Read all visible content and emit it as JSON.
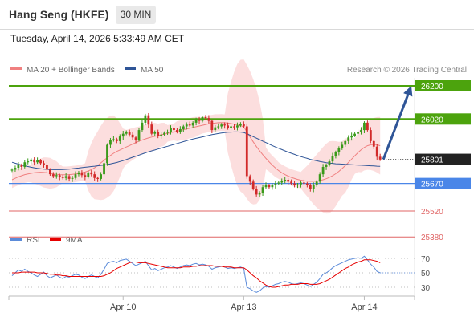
{
  "header": {
    "title": "Hang Seng (HKFE)",
    "timeframe": "30 MIN",
    "timestamp": "Tuesday, April 14, 2026 5:33:49 AM CET"
  },
  "legend": {
    "ma20_label": "MA 20 + Bollinger Bands",
    "ma20_color": "#f08080",
    "ma50_label": "MA 50",
    "ma50_color": "#2f5597",
    "credit": "Research © 2026 Trading Central"
  },
  "rsi_legend": {
    "rsi_label": "RSI",
    "rsi_color": "#5b8bd9",
    "ma9_label": "9MA",
    "ma9_color": "#e60000"
  },
  "chart_data": [
    {
      "type": "candlestick",
      "x_ticks": [
        "Apr 10",
        "Apr 13",
        "Apr 14"
      ],
      "ylim": [
        25330,
        26280
      ],
      "last_price": {
        "value": 25801,
        "label": "25801",
        "color": "#222222"
      },
      "levels": [
        {
          "value": 26200,
          "label": "26200",
          "kind": "resistance",
          "color": "#4ca30d"
        },
        {
          "value": 26020,
          "label": "26020",
          "kind": "resistance",
          "color": "#4ca30d"
        },
        {
          "value": 25670,
          "label": "25670",
          "kind": "pivot",
          "color": "#4a86e8"
        },
        {
          "value": 25520,
          "label": "25520",
          "kind": "support",
          "color": "#e06666"
        },
        {
          "value": 25380,
          "label": "25380",
          "kind": "support",
          "color": "#e06666"
        }
      ],
      "arrow": {
        "from": 25801,
        "to": 26200,
        "color": "#2f5597"
      },
      "close": [
        25745,
        25755,
        25770,
        25760,
        25785,
        25790,
        25800,
        25785,
        25795,
        25780,
        25770,
        25745,
        25720,
        25710,
        25715,
        25705,
        25700,
        25710,
        25695,
        25700,
        25720,
        25730,
        25715,
        25705,
        25730,
        25720,
        25700,
        25695,
        25720,
        25780,
        25880,
        25905,
        25910,
        25900,
        25925,
        25940,
        25950,
        25935,
        25920,
        25905,
        25960,
        26000,
        26040,
        25990,
        25940,
        25950,
        25930,
        25935,
        25945,
        25950,
        25970,
        25960,
        25950,
        25965,
        25980,
        25990,
        25985,
        26000,
        26015,
        26010,
        26030,
        26025,
        26010,
        25960,
        25975,
        25980,
        25990,
        25985,
        25970,
        25980,
        25975,
        25985,
        25995,
        25980,
        25710,
        25680,
        25640,
        25610,
        25620,
        25650,
        25660,
        25650,
        25660,
        25670,
        25675,
        25685,
        25690,
        25680,
        25670,
        25660,
        25665,
        25675,
        25670,
        25660,
        25640,
        25660,
        25680,
        25720,
        25760,
        25770,
        25790,
        25820,
        25840,
        25860,
        25880,
        25900,
        25920,
        25930,
        25940,
        25950,
        25960,
        26000,
        25960,
        25900,
        25870,
        25815,
        25800
      ],
      "ma20": [
        25690,
        25698,
        25706,
        25712,
        25718,
        25722,
        25725,
        25728,
        25730,
        25731,
        25730,
        25728,
        25725,
        25722,
        25720,
        25718,
        25717,
        25717,
        25718,
        25720,
        25722,
        25725,
        25728,
        25732,
        25738,
        25745,
        25755,
        25768,
        25782,
        25796,
        25810,
        25822,
        25834,
        25844,
        25852,
        25860,
        25868,
        25876,
        25884,
        25892,
        25900,
        25906,
        25912,
        25917,
        25922,
        25926,
        25930,
        25934,
        25938,
        25942,
        25946,
        25950,
        25954,
        25958,
        25962,
        25966,
        25970,
        25974,
        25978,
        25982,
        25986,
        25990,
        25994,
        25996,
        25998,
        26000,
        26001,
        26000,
        25998,
        25995,
        25992,
        25988,
        25984,
        25978,
        25950,
        25922,
        25896,
        25870,
        25848,
        25826,
        25806,
        25788,
        25770,
        25754,
        25740,
        25728,
        25718,
        25710,
        25703,
        25697,
        25692,
        25688,
        25685,
        25683,
        25682,
        25682,
        25683,
        25686,
        25690,
        25696,
        25703,
        25712,
        25723,
        25736,
        25751,
        25767,
        25784,
        25802,
        25820,
        25838,
        25853,
        25866,
        25875,
        25880,
        25882,
        25880,
        25875
      ],
      "ma50": [
        25785,
        25780,
        25775,
        25770,
        25766,
        25762,
        25758,
        25755,
        25752,
        25750,
        25748,
        25747,
        25746,
        25745,
        25745,
        25745,
        25746,
        25747,
        25748,
        25750,
        25752,
        25754,
        25756,
        25758,
        25760,
        25762,
        25764,
        25766,
        25768,
        25770,
        25773,
        25776,
        25780,
        25784,
        25789,
        25794,
        25800,
        25806,
        25812,
        25818,
        25824,
        25830,
        25836,
        25842,
        25847,
        25852,
        25857,
        25862,
        25867,
        25872,
        25877,
        25882,
        25887,
        25892,
        25897,
        25902,
        25907,
        25911,
        25915,
        25919,
        25923,
        25927,
        25931,
        25935,
        25938,
        25941,
        25944,
        25946,
        25948,
        25949,
        25950,
        25950,
        25949,
        25947,
        25940,
        25932,
        25924,
        25916,
        25908,
        25900,
        25892,
        25884,
        25876,
        25868,
        25861,
        25854,
        25847,
        25840,
        25834,
        25828,
        25822,
        25816,
        25811,
        25806,
        25801,
        25797,
        25793,
        25789,
        25786,
        25783,
        25781,
        25779,
        25777,
        25776,
        25775,
        25774,
        25773,
        25772,
        25771,
        25770,
        25769,
        25768,
        25767,
        25766,
        25765,
        25764,
        25763
      ]
    },
    {
      "type": "line",
      "name": "RSI",
      "ylim": [
        20,
        80
      ],
      "y_ticks": [
        70,
        50,
        30
      ],
      "series": [
        {
          "name": "RSI",
          "values": [
            46,
            50,
            54,
            52,
            55,
            52,
            50,
            47,
            45,
            48,
            51,
            46,
            43,
            45,
            47,
            44,
            42,
            45,
            44,
            46,
            48,
            47,
            44,
            42,
            45,
            47,
            45,
            43,
            48,
            55,
            63,
            65,
            66,
            64,
            67,
            68,
            69,
            66,
            63,
            60,
            62,
            64,
            66,
            60,
            54,
            56,
            53,
            55,
            57,
            58,
            60,
            58,
            56,
            58,
            60,
            61,
            60,
            62,
            63,
            61,
            62,
            61,
            59,
            55,
            57,
            58,
            59,
            58,
            56,
            57,
            56,
            57,
            58,
            56,
            30,
            28,
            25,
            23,
            25,
            29,
            31,
            30,
            32,
            34,
            35,
            37,
            38,
            37,
            35,
            34,
            35,
            36,
            35,
            33,
            31,
            34,
            37,
            42,
            48,
            50,
            53,
            57,
            60,
            62,
            64,
            66,
            68,
            69,
            70,
            71,
            70,
            73,
            68,
            62,
            58,
            52,
            50
          ]
        },
        {
          "name": "9MA",
          "values": [
            50,
            50,
            50,
            51,
            51,
            51,
            51,
            51,
            50,
            50,
            50,
            49,
            48,
            48,
            47,
            47,
            46,
            46,
            45,
            45,
            45,
            45,
            45,
            45,
            45,
            45,
            45,
            45,
            45,
            46,
            48,
            50,
            53,
            56,
            58,
            60,
            62,
            64,
            65,
            65,
            64,
            64,
            64,
            63,
            62,
            61,
            60,
            59,
            58,
            57,
            57,
            57,
            57,
            57,
            58,
            58,
            58,
            59,
            59,
            60,
            60,
            60,
            60,
            60,
            59,
            59,
            59,
            58,
            58,
            58,
            57,
            57,
            57,
            57,
            54,
            50,
            46,
            43,
            39,
            36,
            33,
            31,
            30,
            30,
            31,
            32,
            33,
            33,
            34,
            34,
            34,
            35,
            35,
            35,
            34,
            34,
            34,
            35,
            37,
            39,
            41,
            44,
            47,
            50,
            53,
            56,
            58,
            61,
            63,
            65,
            66,
            68,
            68,
            68,
            67,
            66,
            64
          ]
        }
      ],
      "x_ticks": [
        "Apr 10",
        "Apr 13",
        "Apr 14"
      ]
    }
  ]
}
